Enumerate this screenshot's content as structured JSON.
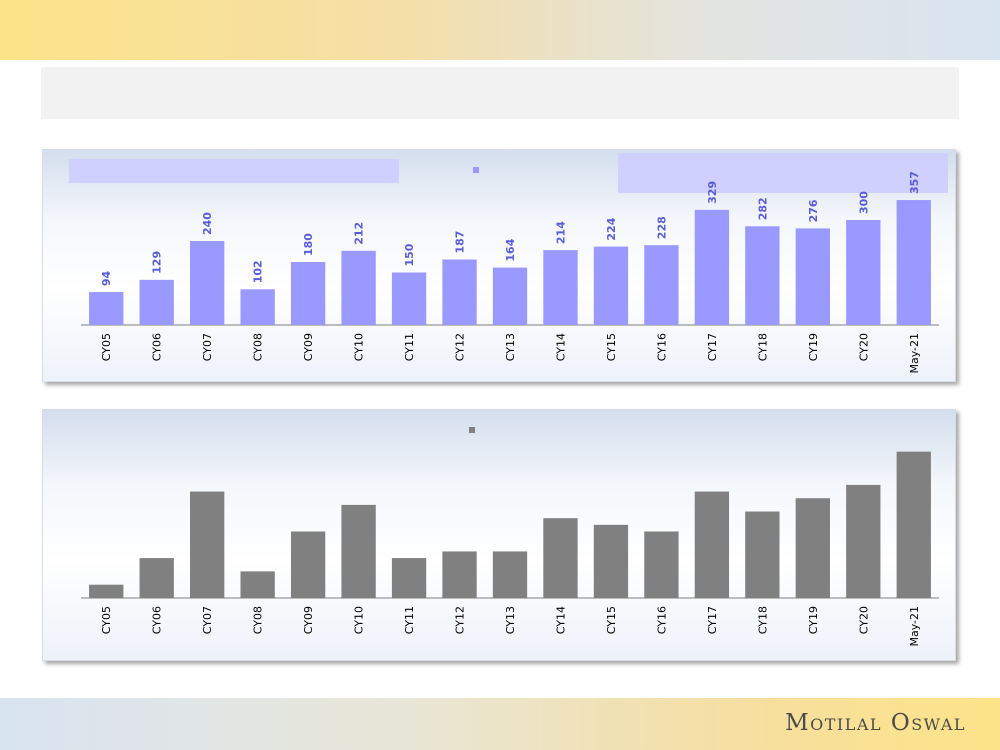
{
  "brand": {
    "logo_text": "Motilal Oswal"
  },
  "colors": {
    "series1": "#9999ff",
    "series2": "#808080",
    "label1": "#5b5bd6",
    "axis": "#7f7f7f"
  },
  "chart_data": [
    {
      "type": "bar",
      "categories": [
        "CY05",
        "CY06",
        "CY07",
        "CY08",
        "CY09",
        "CY10",
        "CY11",
        "CY12",
        "CY13",
        "CY14",
        "CY15",
        "CY16",
        "CY17",
        "CY18",
        "CY19",
        "CY20",
        "May-21"
      ],
      "values": [
        94,
        129,
        240,
        102,
        180,
        212,
        150,
        187,
        164,
        214,
        224,
        228,
        329,
        282,
        276,
        300,
        357
      ],
      "data_labels": true,
      "ylim": [
        0,
        400
      ],
      "grid": false,
      "legend": "top-center"
    },
    {
      "type": "bar",
      "categories": [
        "CY05",
        "CY06",
        "CY07",
        "CY08",
        "CY09",
        "CY10",
        "CY11",
        "CY12",
        "CY13",
        "CY14",
        "CY15",
        "CY16",
        "CY17",
        "CY18",
        "CY19",
        "CY20",
        "May-21"
      ],
      "values": [
        1,
        3,
        8,
        2,
        5,
        7,
        3,
        3.5,
        3.5,
        6,
        5.5,
        5,
        8,
        6.5,
        7.5,
        8.5,
        11
      ],
      "data_labels": false,
      "ylim": [
        0,
        11.5
      ],
      "grid": false,
      "legend": "top-center"
    }
  ]
}
